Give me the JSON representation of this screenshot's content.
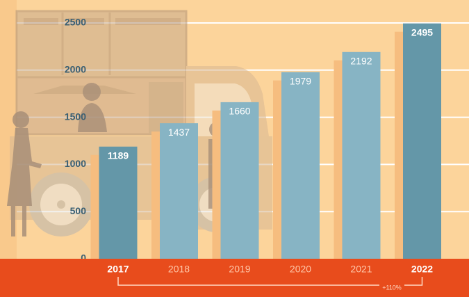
{
  "chart_data": {
    "type": "bar",
    "categories": [
      "2017",
      "2018",
      "2019",
      "2020",
      "2021",
      "2022"
    ],
    "values": [
      1189,
      1437,
      1660,
      1979,
      2192,
      2495
    ],
    "value_labels": [
      "1189",
      "1437",
      "1660",
      "1979",
      "2192",
      "2495"
    ],
    "y_ticks": [
      "0",
      "500",
      "1000",
      "1500",
      "2000",
      "2500"
    ],
    "ylim": [
      0,
      2500
    ],
    "grid": true,
    "highlighted": [
      "2017",
      "2022"
    ],
    "bracket_label": "+110%",
    "title": "",
    "xlabel": "",
    "ylabel": ""
  },
  "colors": {
    "background": "#fcd49b",
    "bar_light": "#87b4c4",
    "bar_dark": "#6497a8",
    "shadow": "#f6bd7f",
    "axis_band": "#e84c1c",
    "grid": "#ffffff",
    "tick_text": "#3a5f73",
    "silhouette": "#b59a7d"
  },
  "icons": [
    "food-truck-illustration",
    "woman-silhouette",
    "man-silhouette"
  ]
}
